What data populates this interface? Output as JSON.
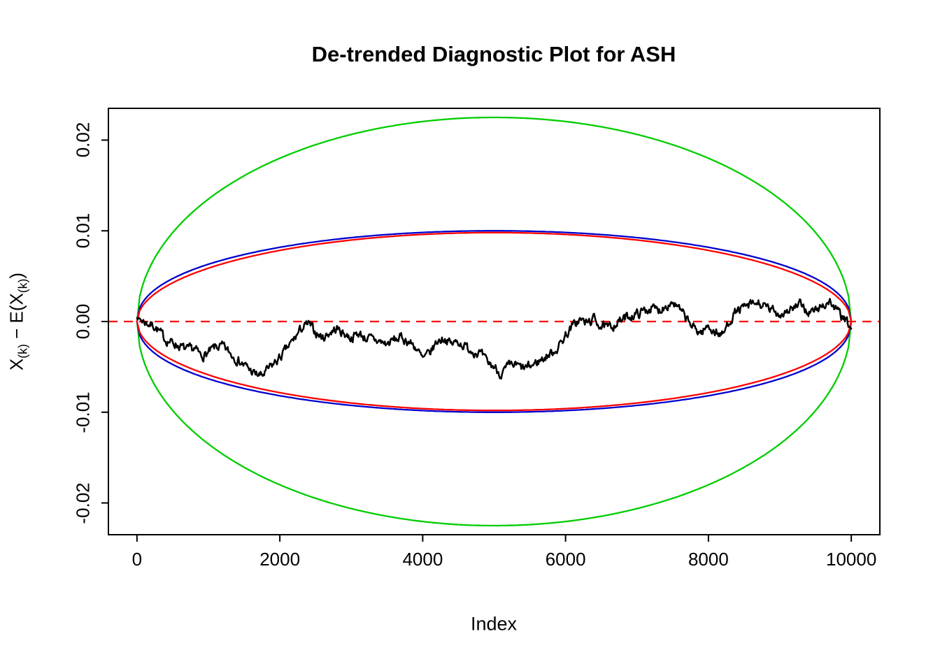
{
  "chart_data": {
    "type": "line",
    "title": "De-trended Diagnostic Plot for ASH",
    "xlabel": "Index",
    "ylabel_text": "X(k) − E(X(k))",
    "ylabel_parts": {
      "p1": "X",
      "s1": "(k)",
      "p2": " − E(X",
      "s2": "(k)",
      "p3": ")"
    },
    "xlim": [
      -400,
      10400
    ],
    "ylim": [
      -0.0235,
      0.0235
    ],
    "xticks": [
      0,
      2000,
      4000,
      6000,
      8000,
      10000
    ],
    "xtick_labels": [
      "0",
      "2000",
      "4000",
      "6000",
      "8000",
      "10000"
    ],
    "yticks": [
      -0.02,
      -0.01,
      0,
      0.01,
      0.02
    ],
    "ytick_labels": [
      "-0.02",
      "-0.01",
      "0.00",
      "0.01",
      "0.02"
    ],
    "grid": false,
    "legend": "none",
    "colors": {
      "outer_envelope": "#00CD00",
      "blue_envelope": "#0000CD",
      "red_envelope": "#FF0000",
      "reference_line": "#FF0000",
      "series": "#000000",
      "frame": "#000000",
      "background": "#FFFFFF"
    },
    "reference_line": {
      "y": 0,
      "style": "dashed",
      "color": "#FF0000"
    },
    "envelopes": [
      {
        "name": "outer-green-ellipse",
        "color": "#00CD00",
        "x_start": 0,
        "x_end": 10000,
        "amplitude": 0.0225,
        "exponent": 0.5
      },
      {
        "name": "blue-boundary",
        "color": "#0000CD",
        "x_start": 0,
        "x_end": 10000,
        "amplitude": 0.01,
        "exponent": 0.45
      },
      {
        "name": "red-ellipse",
        "color": "#FF0000",
        "x_start": 0,
        "x_end": 10000,
        "amplitude": 0.0098,
        "exponent": 0.5
      }
    ],
    "series": [
      {
        "name": "detrended-order-statistics",
        "color": "#000000",
        "keypoints": [
          [
            0,
            0.0004
          ],
          [
            150,
            -0.0002
          ],
          [
            250,
            -0.0005
          ],
          [
            400,
            -0.002
          ],
          [
            550,
            -0.0025
          ],
          [
            700,
            -0.0032
          ],
          [
            800,
            -0.003
          ],
          [
            900,
            -0.0038
          ],
          [
            1000,
            -0.0035
          ],
          [
            1100,
            -0.0028
          ],
          [
            1200,
            -0.0028
          ],
          [
            1350,
            -0.0038
          ],
          [
            1500,
            -0.0048
          ],
          [
            1650,
            -0.0058
          ],
          [
            1750,
            -0.006
          ],
          [
            1850,
            -0.0052
          ],
          [
            2000,
            -0.004
          ],
          [
            2150,
            -0.0025
          ],
          [
            2300,
            -0.0008
          ],
          [
            2400,
            -0.0003
          ],
          [
            2500,
            -0.0012
          ],
          [
            2600,
            -0.0018
          ],
          [
            2700,
            -0.0012
          ],
          [
            2800,
            -0.0008
          ],
          [
            2900,
            -0.0013
          ],
          [
            3000,
            -0.0018
          ],
          [
            3100,
            -0.0013
          ],
          [
            3200,
            -0.0018
          ],
          [
            3300,
            -0.002
          ],
          [
            3400,
            -0.0022
          ],
          [
            3500,
            -0.0025
          ],
          [
            3600,
            -0.002
          ],
          [
            3700,
            -0.0018
          ],
          [
            3800,
            -0.0022
          ],
          [
            3900,
            -0.0028
          ],
          [
            4000,
            -0.0042
          ],
          [
            4100,
            -0.0035
          ],
          [
            4200,
            -0.0022
          ],
          [
            4300,
            -0.0018
          ],
          [
            4400,
            -0.0025
          ],
          [
            4500,
            -0.0022
          ],
          [
            4600,
            -0.0028
          ],
          [
            4700,
            -0.0032
          ],
          [
            4800,
            -0.0035
          ],
          [
            4900,
            -0.0045
          ],
          [
            5000,
            -0.005
          ],
          [
            5100,
            -0.0058
          ],
          [
            5200,
            -0.005
          ],
          [
            5300,
            -0.0048
          ],
          [
            5400,
            -0.0052
          ],
          [
            5500,
            -0.005
          ],
          [
            5600,
            -0.0045
          ],
          [
            5700,
            -0.004
          ],
          [
            5800,
            -0.0035
          ],
          [
            5900,
            -0.0028
          ],
          [
            6000,
            -0.0015
          ],
          [
            6100,
            -0.0005
          ],
          [
            6200,
            0.0002
          ],
          [
            6300,
            -0.0002
          ],
          [
            6400,
            0.0003
          ],
          [
            6500,
            -0.0005
          ],
          [
            6600,
            -0.0008
          ],
          [
            6700,
            -0.0002
          ],
          [
            6800,
            0.0002
          ],
          [
            6900,
            0.0006
          ],
          [
            7000,
            0.0008
          ],
          [
            7100,
            0.0012
          ],
          [
            7200,
            0.0015
          ],
          [
            7300,
            0.0012
          ],
          [
            7400,
            0.0018
          ],
          [
            7500,
            0.0022
          ],
          [
            7600,
            0.0012
          ],
          [
            7700,
            0.0002
          ],
          [
            7800,
            -0.0008
          ],
          [
            7900,
            -0.0012
          ],
          [
            8000,
            -0.0005
          ],
          [
            8100,
            -0.0012
          ],
          [
            8200,
            -0.0015
          ],
          [
            8300,
            0.0002
          ],
          [
            8400,
            0.0012
          ],
          [
            8500,
            0.0015
          ],
          [
            8600,
            0.0018
          ],
          [
            8700,
            0.002
          ],
          [
            8800,
            0.0015
          ],
          [
            8900,
            0.0012
          ],
          [
            9000,
            0.0008
          ],
          [
            9100,
            0.0012
          ],
          [
            9200,
            0.0015
          ],
          [
            9300,
            0.0018
          ],
          [
            9400,
            0.001
          ],
          [
            9500,
            0.0012
          ],
          [
            9600,
            0.0018
          ],
          [
            9700,
            0.0022
          ],
          [
            9800,
            0.0012
          ],
          [
            9900,
            0.0002
          ],
          [
            10000,
            -0.0008
          ]
        ],
        "noise": {
          "seed": 7,
          "rho": 0.55,
          "amplitude": 0.00085,
          "step": 10
        }
      }
    ]
  }
}
